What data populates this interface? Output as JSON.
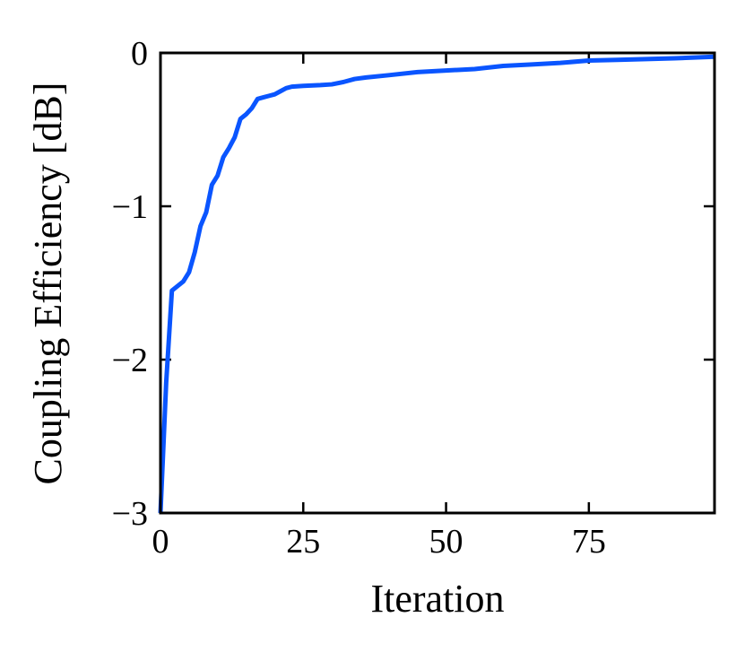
{
  "chart_data": {
    "type": "line",
    "xlabel": "Iteration",
    "ylabel": "Coupling Efficiency [dB]",
    "x": [
      0,
      1,
      2,
      3,
      4,
      5,
      6,
      7,
      8,
      9,
      10,
      11,
      12,
      13,
      14,
      15,
      16,
      17,
      18,
      19,
      20,
      21,
      22,
      23,
      25,
      28,
      30,
      32,
      34,
      36,
      40,
      45,
      50,
      55,
      60,
      65,
      70,
      75,
      80,
      85,
      90,
      97
    ],
    "values": [
      -3,
      -2.15,
      -1.55,
      -1.52,
      -1.49,
      -1.43,
      -1.3,
      -1.13,
      -1.04,
      -0.86,
      -0.8,
      -0.68,
      -0.62,
      -0.55,
      -0.43,
      -0.4,
      -0.36,
      -0.3,
      -0.29,
      -0.28,
      -0.27,
      -0.25,
      -0.23,
      -0.22,
      -0.215,
      -0.21,
      -0.205,
      -0.19,
      -0.17,
      -0.16,
      -0.145,
      -0.125,
      -0.115,
      -0.105,
      -0.085,
      -0.075,
      -0.065,
      -0.05,
      -0.045,
      -0.04,
      -0.035,
      -0.025
    ],
    "color": "#0a55ff",
    "xlim": [
      0,
      97
    ],
    "xticks": [
      0,
      25,
      50,
      75
    ],
    "ylim": [
      -3,
      0
    ],
    "yticks": [
      {
        "value": -3,
        "label": "−3"
      },
      {
        "value": -2,
        "label": "−2"
      },
      {
        "value": -1,
        "label": "−1"
      },
      0
    ]
  }
}
